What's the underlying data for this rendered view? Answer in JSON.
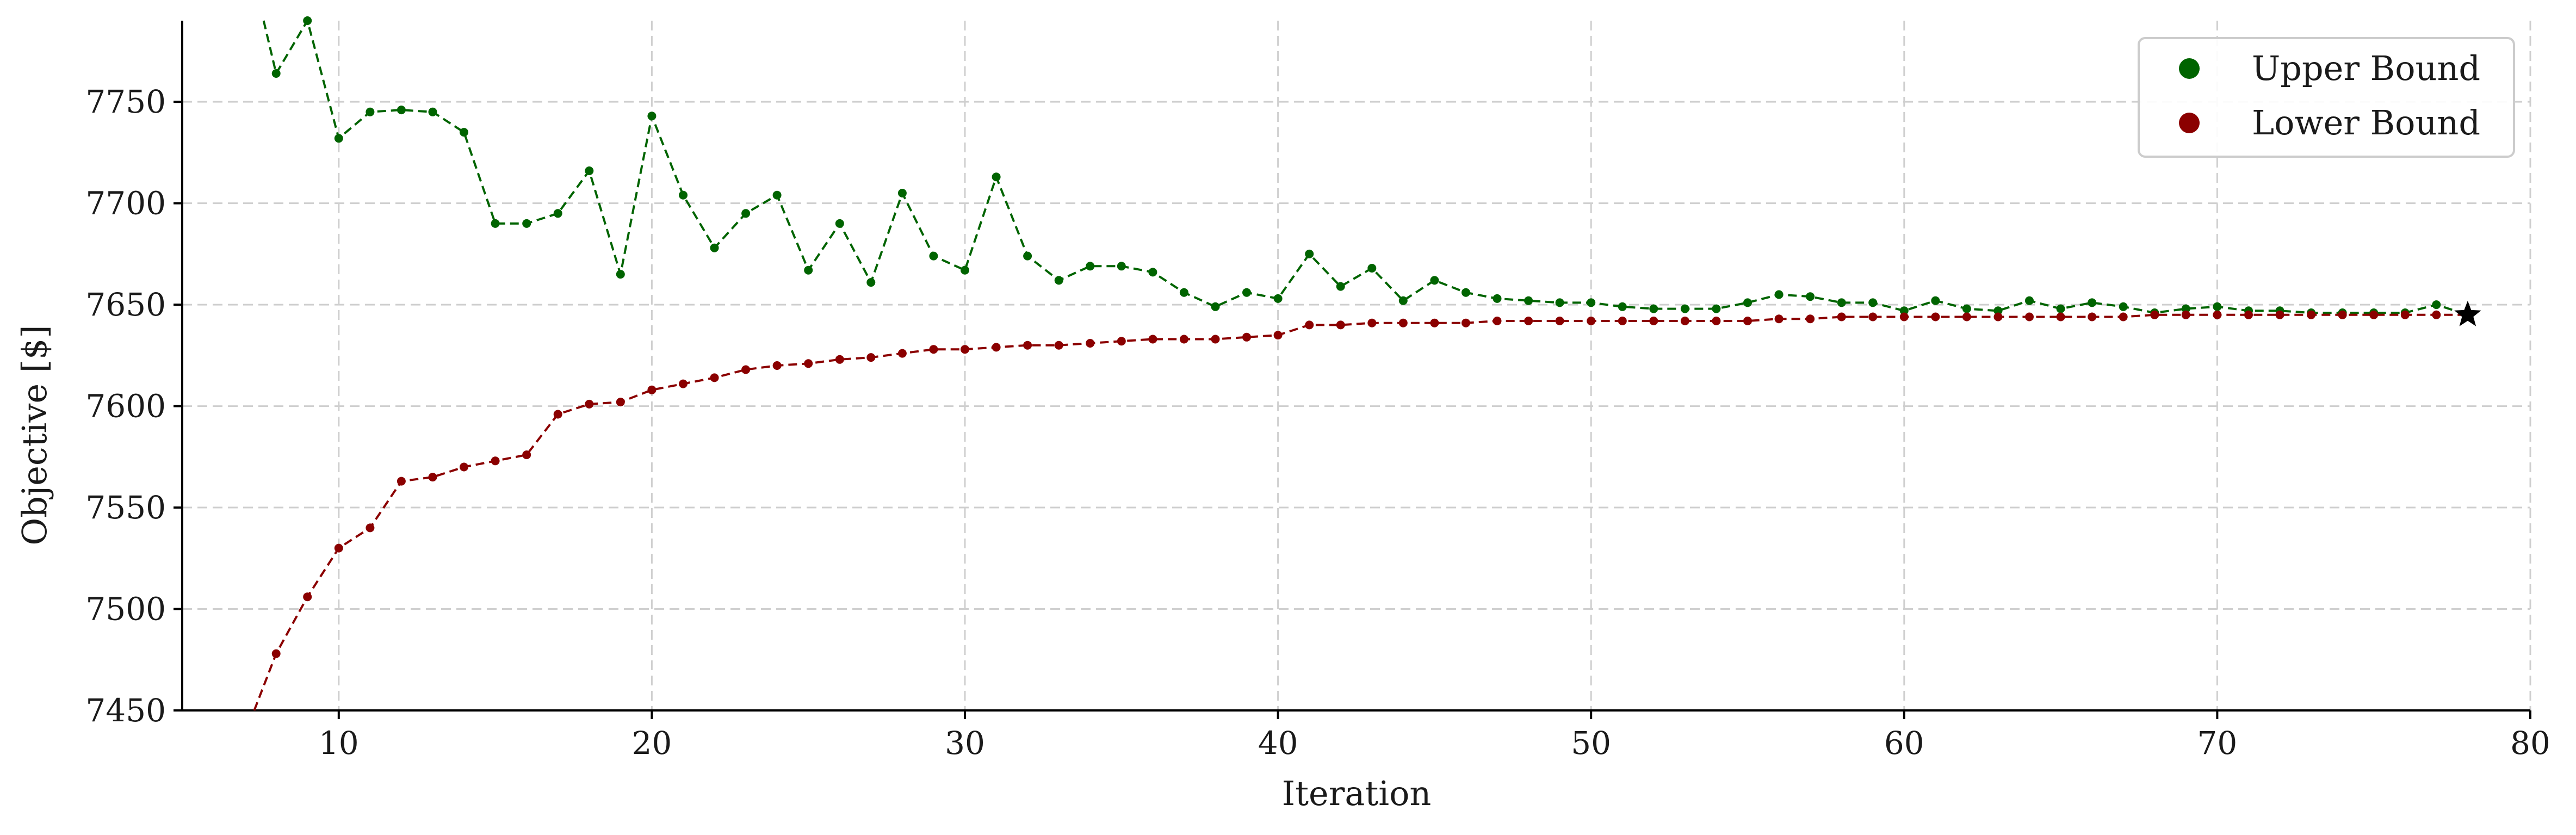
{
  "chart_data": {
    "type": "line",
    "xlabel": "Iteration",
    "ylabel": "Objective [$]",
    "xlim": [
      5,
      80
    ],
    "ylim": [
      7450,
      7790
    ],
    "xticks": [
      10,
      20,
      30,
      40,
      50,
      60,
      70,
      80
    ],
    "yticks": [
      7450,
      7500,
      7550,
      7600,
      7650,
      7700,
      7750
    ],
    "grid": true,
    "legend_position": "top-right",
    "line_style": "dashed",
    "series": [
      {
        "name": "Upper Bound",
        "color": "#006400",
        "x": [
          7.6,
          8,
          9,
          10,
          11,
          12,
          13,
          14,
          15,
          16,
          17,
          18,
          19,
          20,
          21,
          22,
          23,
          24,
          25,
          26,
          27,
          28,
          29,
          30,
          31,
          32,
          33,
          34,
          35,
          36,
          37,
          38,
          39,
          40,
          41,
          42,
          43,
          44,
          45,
          46,
          47,
          48,
          49,
          50,
          51,
          52,
          53,
          54,
          55,
          56,
          57,
          58,
          59,
          60,
          61,
          62,
          63,
          64,
          65,
          66,
          67,
          68,
          69,
          70,
          71,
          72,
          73,
          74,
          75,
          76,
          77,
          78
        ],
        "y": [
          7790,
          7764,
          7790,
          7732,
          7745,
          7746,
          7745,
          7735,
          7690,
          7690,
          7695,
          7716,
          7665,
          7743,
          7704,
          7678,
          7695,
          7704,
          7667,
          7690,
          7661,
          7705,
          7674,
          7667,
          7713,
          7674,
          7662,
          7669,
          7669,
          7666,
          7656,
          7649,
          7656,
          7653,
          7675,
          7659,
          7668,
          7652,
          7662,
          7656,
          7653,
          7652,
          7651,
          7651,
          7649,
          7648,
          7648,
          7648,
          7651,
          7655,
          7654,
          7651,
          7651,
          7647,
          7652,
          7648,
          7647,
          7652,
          7648,
          7651,
          7649,
          7646,
          7648,
          7649,
          7647,
          7647,
          7646,
          7646,
          7646,
          7646,
          7650,
          7645
        ]
      },
      {
        "name": "Lower Bound",
        "color": "#8b0000",
        "x": [
          7.3,
          8,
          9,
          10,
          11,
          12,
          13,
          14,
          15,
          16,
          17,
          18,
          19,
          20,
          21,
          22,
          23,
          24,
          25,
          26,
          27,
          28,
          29,
          30,
          31,
          32,
          33,
          34,
          35,
          36,
          37,
          38,
          39,
          40,
          41,
          42,
          43,
          44,
          45,
          46,
          47,
          48,
          49,
          50,
          51,
          52,
          53,
          54,
          55,
          56,
          57,
          58,
          59,
          60,
          61,
          62,
          63,
          64,
          65,
          66,
          67,
          68,
          69,
          70,
          71,
          72,
          73,
          74,
          75,
          76,
          77,
          78
        ],
        "y": [
          7450,
          7478,
          7506,
          7530,
          7540,
          7563,
          7565,
          7570,
          7573,
          7576,
          7596,
          7601,
          7602,
          7608,
          7611,
          7614,
          7618,
          7620,
          7621,
          7623,
          7624,
          7626,
          7628,
          7628,
          7629,
          7630,
          7630,
          7631,
          7632,
          7633,
          7633,
          7633,
          7634,
          7635,
          7640,
          7640,
          7641,
          7641,
          7641,
          7641,
          7642,
          7642,
          7642,
          7642,
          7642,
          7642,
          7642,
          7642,
          7642,
          7643,
          7643,
          7644,
          7644,
          7644,
          7644,
          7644,
          7644,
          7644,
          7644,
          7644,
          7644,
          7645,
          7645,
          7645,
          7645,
          7645,
          7645,
          7645,
          7645,
          7645,
          7645,
          7645
        ]
      }
    ],
    "final_marker": {
      "x": 78,
      "y": 7645,
      "shape": "star",
      "color": "#000000"
    }
  }
}
